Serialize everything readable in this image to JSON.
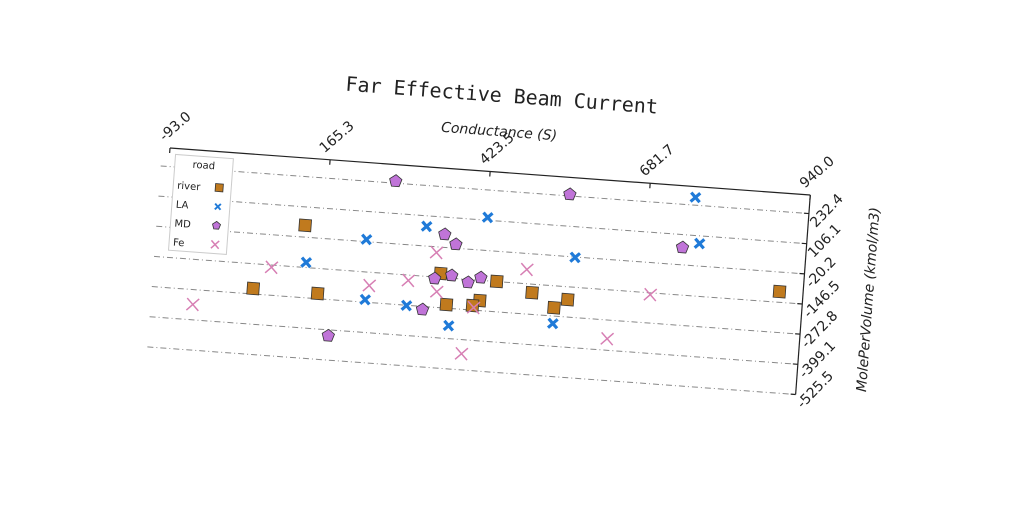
{
  "chart_data": {
    "type": "scatter",
    "title": "Far Effective Beam Current",
    "xlabel": "Conductance (S)",
    "ylabel": "MolePerVolume (kmol/m3)",
    "xlim": [
      -93.0,
      940.0
    ],
    "xticks": [
      {
        "value": -93.0,
        "label": "-93.0"
      },
      165.3,
      423.5,
      681.7,
      {
        "value": 940.0,
        "label": "940.0"
      }
    ],
    "ylim": [
      -525.5,
      310
    ],
    "yticks": [
      232.4,
      106.1,
      -20.2,
      -146.5,
      -272.8,
      -399.1,
      -525.5
    ],
    "grid": true,
    "legend_title": "road",
    "legend": "upper left",
    "series": [
      {
        "name": "river",
        "color": "#c07a1e",
        "marker": "square",
        "x": [
          133,
          57,
          161,
          356,
          369,
          422,
          411,
          447,
          505,
          542,
          563,
          902
        ],
        "values": [
          29,
          -250,
          -251,
          -130,
          -258,
          -231,
          -254,
          -146,
          -182,
          -238,
          -200,
          -102
        ]
      },
      {
        "name": "LA",
        "color": "#1f7ad8",
        "marker": "X",
        "x": [
          756,
          425,
          328,
          233,
          768,
          570,
          139,
          238,
          305,
          375,
          542
        ],
        "values": [
          265,
          118,
          62,
          -11,
          74,
          -22,
          -125,
          -262,
          -274,
          -345,
          -304
        ]
      },
      {
        "name": "MD",
        "color": "#c074d8",
        "marker": "pentagon",
        "x": [
          273,
          554,
          358,
          377,
          741,
          347,
          374,
          401,
          421,
          331,
          183
        ],
        "values": [
          241,
          239,
          34,
          -4,
          52,
          -153,
          -135,
          -159,
          -135,
          -286,
          -424
        ]
      },
      {
        "name": "Fe",
        "color": "#d77fb4",
        "marker": "x",
        "x": [
          -38,
          84,
          243,
          305,
          347,
          352,
          494,
          695,
          631,
          399,
          413
        ],
        "values": [
          -335,
          -156,
          -202,
          -169,
          -44,
          -207,
          -87,
          -154,
          -351,
          -458,
          -262
        ]
      }
    ]
  }
}
